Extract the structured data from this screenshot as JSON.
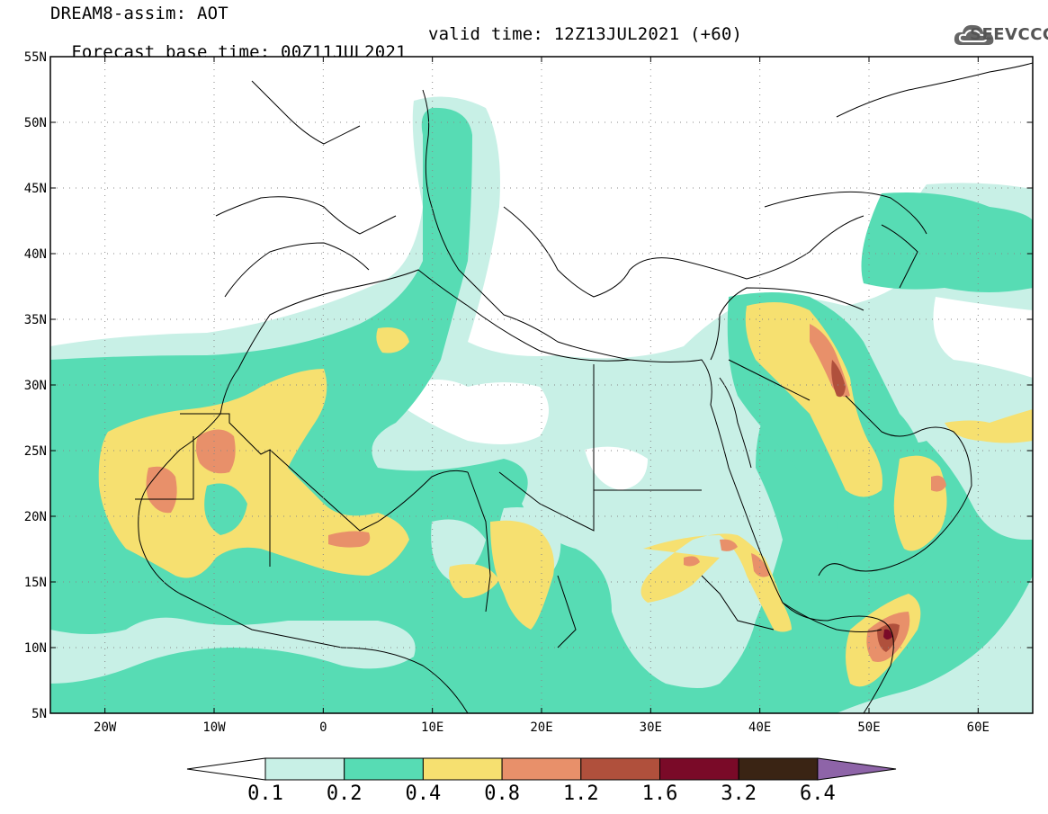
{
  "header": {
    "title": "DREAM8-assim: AOT",
    "base_time": "Forecast base time: 00Z11JUL2021",
    "valid_time": "valid time: 12Z13JUL2021 (+60)"
  },
  "logo": {
    "text": "SEEVCCC",
    "icon": "cloud-logo-icon"
  },
  "map": {
    "lon_range": [
      -25,
      65
    ],
    "lat_range": [
      5,
      55
    ],
    "lat_ticks": [
      {
        "value": 55,
        "label": "55N"
      },
      {
        "value": 50,
        "label": "50N"
      },
      {
        "value": 45,
        "label": "45N"
      },
      {
        "value": 40,
        "label": "40N"
      },
      {
        "value": 35,
        "label": "35N"
      },
      {
        "value": 30,
        "label": "30N"
      },
      {
        "value": 25,
        "label": "25N"
      },
      {
        "value": 20,
        "label": "20N"
      },
      {
        "value": 15,
        "label": "15N"
      },
      {
        "value": 10,
        "label": "10N"
      },
      {
        "value": 5,
        "label": "5N"
      }
    ],
    "lon_ticks": [
      {
        "value": -20,
        "label": "20W"
      },
      {
        "value": -10,
        "label": "10W"
      },
      {
        "value": 0,
        "label": "0"
      },
      {
        "value": 10,
        "label": "10E"
      },
      {
        "value": 20,
        "label": "20E"
      },
      {
        "value": 30,
        "label": "30E"
      },
      {
        "value": 40,
        "label": "40E"
      },
      {
        "value": 50,
        "label": "50E"
      },
      {
        "value": 60,
        "label": "60E"
      }
    ],
    "grid": "dotted"
  },
  "colorbar": {
    "levels": [
      {
        "label": "0.1"
      },
      {
        "label": "0.2"
      },
      {
        "label": "0.4"
      },
      {
        "label": "0.8"
      },
      {
        "label": "1.2"
      },
      {
        "label": "1.6"
      },
      {
        "label": "3.2"
      },
      {
        "label": "6.4"
      }
    ],
    "colors": [
      "#ffffff",
      "#c8f0e6",
      "#57dcb4",
      "#f6e070",
      "#e8906a",
      "#b0503c",
      "#7a0a28",
      "#3a2414",
      "#8e64a8"
    ]
  }
}
